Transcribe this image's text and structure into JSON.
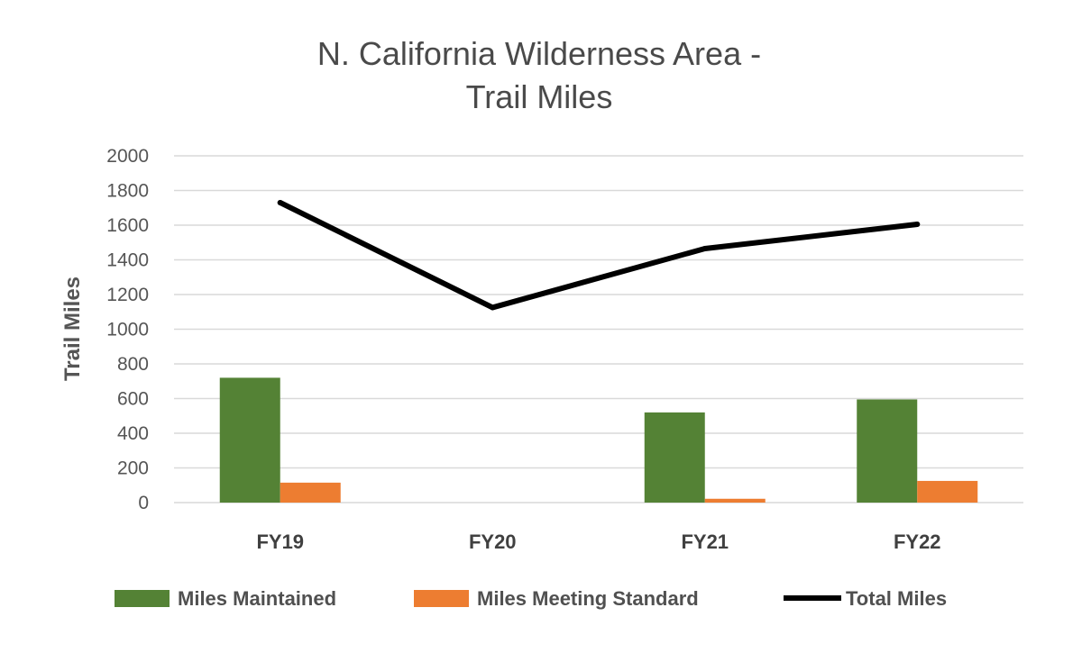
{
  "chart_data": {
    "type": "bar",
    "title_lines": [
      "N. California Wilderness Area -",
      "Trail Miles"
    ],
    "xlabel": "",
    "ylabel": "Trail Miles",
    "categories": [
      "FY19",
      "FY20",
      "FY21",
      "FY22"
    ],
    "ylim": [
      0,
      2000
    ],
    "yticks": [
      0,
      200,
      400,
      600,
      800,
      1000,
      1200,
      1400,
      1600,
      1800,
      2000
    ],
    "grid": true,
    "legend_position": "bottom",
    "series": [
      {
        "name": "Miles Maintained",
        "kind": "bar",
        "color": "#548235",
        "values": [
          720,
          null,
          520,
          595
        ]
      },
      {
        "name": "Miles Meeting Standard",
        "kind": "bar",
        "color": "#ED7D31",
        "values": [
          115,
          null,
          22,
          125
        ]
      },
      {
        "name": "Total Miles",
        "kind": "line",
        "color": "#000000",
        "values": [
          1730,
          1125,
          1465,
          1605
        ]
      }
    ]
  }
}
